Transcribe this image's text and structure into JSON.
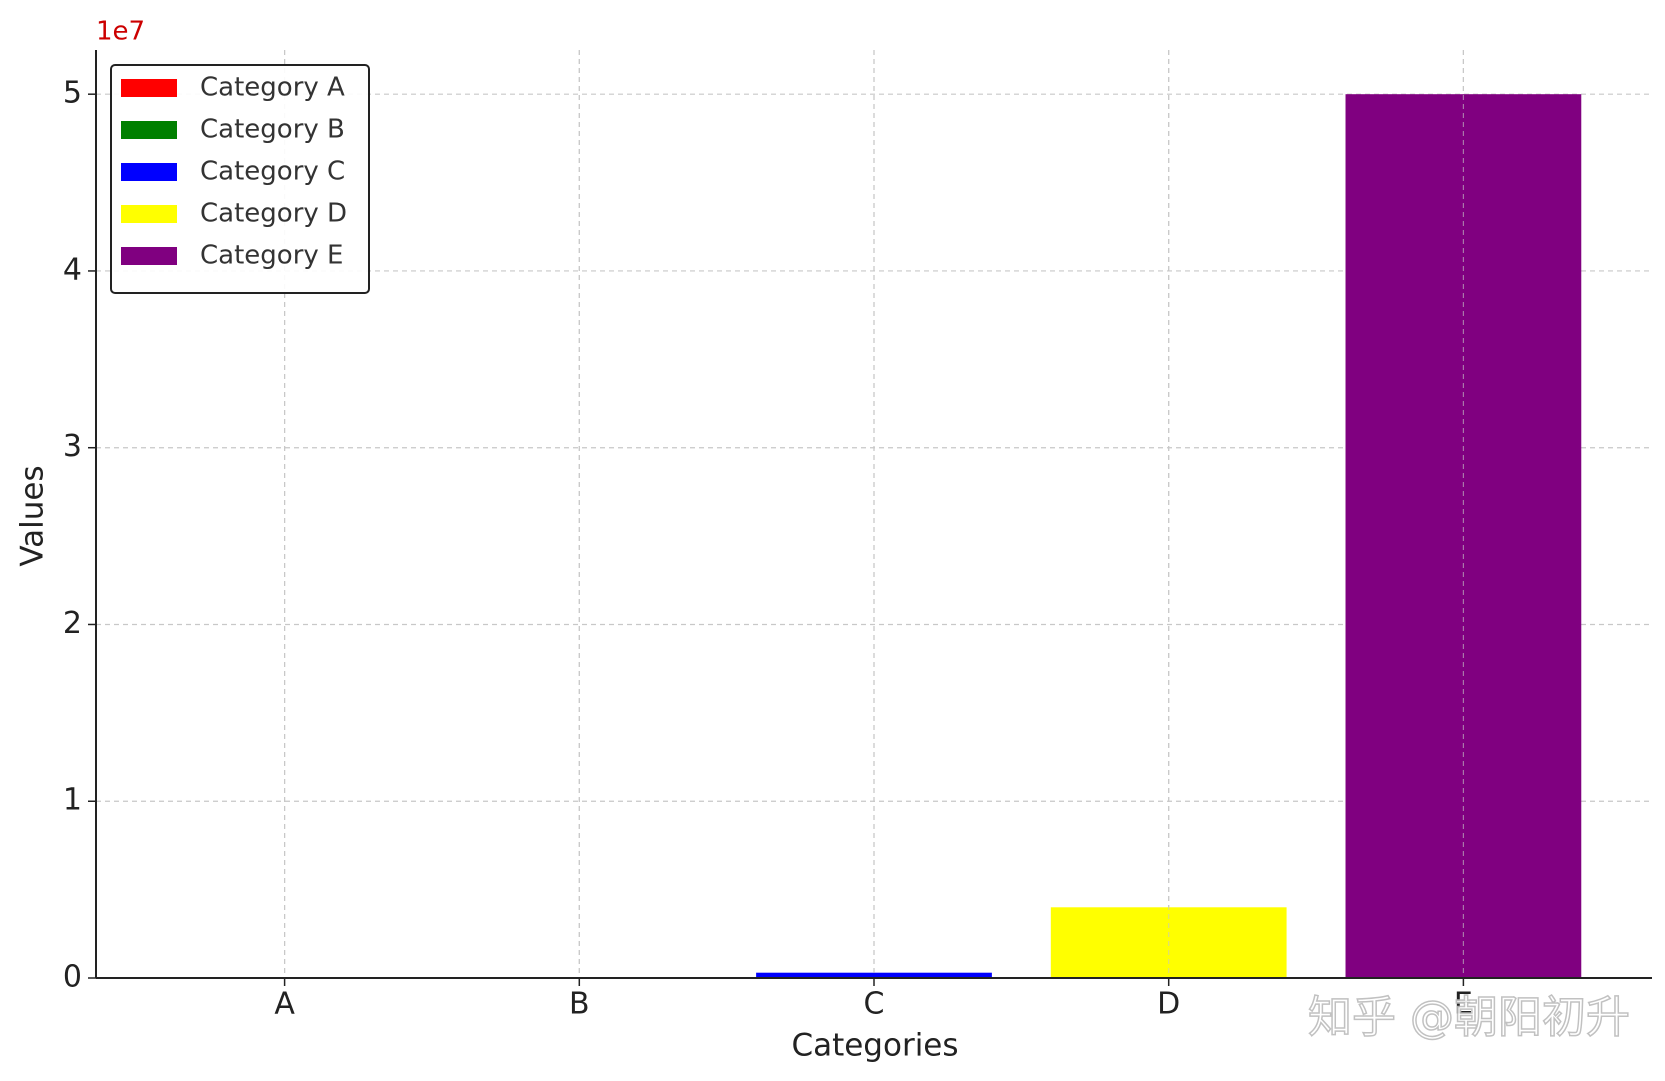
{
  "chart_data": {
    "type": "bar",
    "x_label": "Categories",
    "y_label": "Values",
    "offset_label": "1e7",
    "categories": [
      "A",
      "B",
      "C",
      "D",
      "E"
    ],
    "values": [
      0.0001,
      0.001,
      0.03,
      0.4,
      5
    ],
    "colors": [
      "#ff0000",
      "#008000",
      "#0000ff",
      "#ffff00",
      "#800080"
    ],
    "legend": [
      "Category A",
      "Category B",
      "Category C",
      "Category D",
      "Category E"
    ],
    "legend_position": "upper left",
    "ylim": [
      0,
      5.25
    ],
    "yticks": [
      0,
      1,
      2,
      3,
      4,
      5
    ],
    "grid": true,
    "watermark": "知乎 @朝阳初升"
  }
}
